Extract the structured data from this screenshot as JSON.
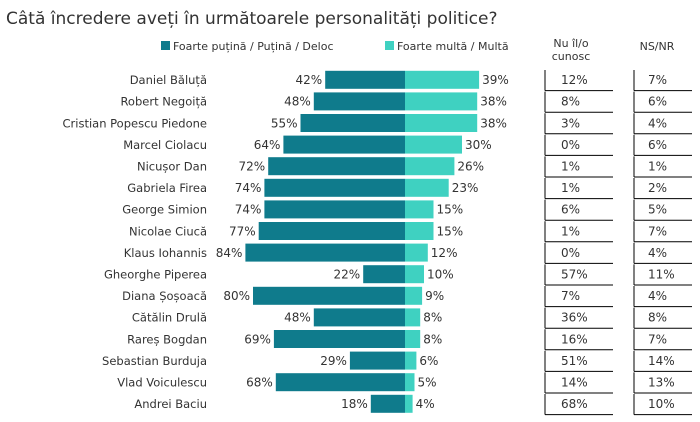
{
  "chart_data": {
    "type": "bar",
    "title": "Câtă încredere aveți în următoarele personalități politice?",
    "legend": {
      "placement": "top",
      "entries": [
        {
          "name": "Foarte puțină / Puțină / Deloc",
          "color": "#0f7b8c"
        },
        {
          "name": "Foarte multă / Multă",
          "color": "#3fd1c1"
        }
      ]
    },
    "extra_column_headers": {
      "unknown": "Nu îl/o cunosc",
      "nsnr": "NS/NR"
    },
    "categories": [
      "Daniel Băluță",
      "Robert Negoiță",
      "Cristian Popescu Piedone",
      "Marcel Ciolacu",
      "Nicușor Dan",
      "Gabriela Firea",
      "George Simion",
      "Nicolae Ciucă",
      "Klaus Iohannis",
      "Gheorghe Piperea",
      "Diana Șoșoacă",
      "Cătălin Drulă",
      "Rareș Bogdan",
      "Sebastian Burduja",
      "Vlad Voiculescu",
      "Andrei Baciu"
    ],
    "series": [
      {
        "name": "Foarte puțină / Puțină / Deloc",
        "values": [
          42,
          48,
          55,
          64,
          72,
          74,
          74,
          77,
          84,
          22,
          80,
          48,
          69,
          29,
          68,
          18
        ]
      },
      {
        "name": "Foarte multă / Multă",
        "values": [
          39,
          38,
          38,
          30,
          26,
          23,
          15,
          15,
          12,
          10,
          9,
          8,
          8,
          6,
          5,
          4
        ]
      },
      {
        "name": "Nu îl/o cunosc",
        "values": [
          12,
          8,
          3,
          0,
          1,
          1,
          6,
          1,
          0,
          57,
          7,
          36,
          16,
          51,
          14,
          68
        ]
      },
      {
        "name": "NS/NR",
        "values": [
          7,
          6,
          4,
          6,
          1,
          2,
          5,
          7,
          4,
          11,
          4,
          8,
          7,
          14,
          13,
          10
        ]
      }
    ],
    "value_suffix": "%",
    "xlim": [
      0,
      100
    ],
    "grid": false,
    "colors": {
      "low": "#0f7b8c",
      "high": "#3fd1c1",
      "text": "#333333"
    }
  }
}
